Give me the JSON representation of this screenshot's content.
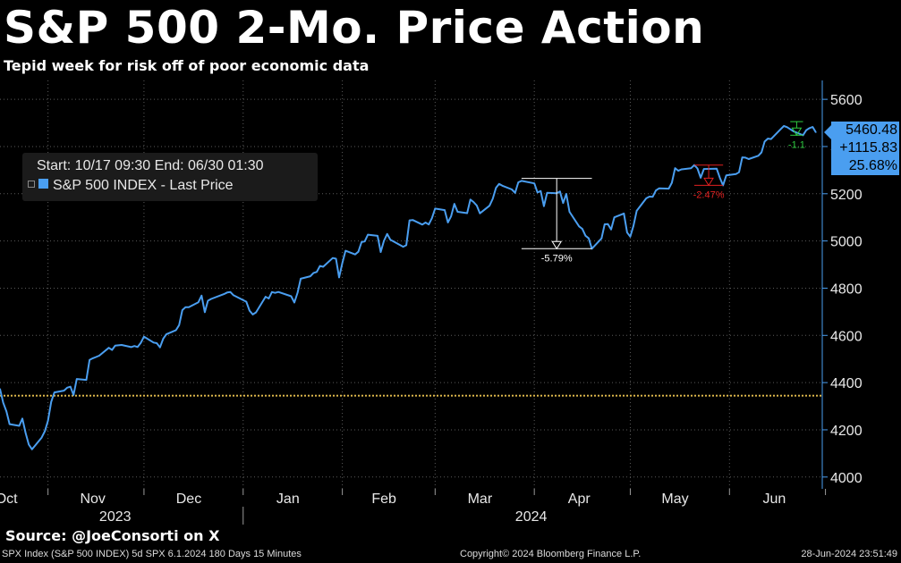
{
  "header": {
    "title": "S&P 500 2-Mo. Price Action",
    "subtitle": "Tepid week for risk off of poor economic data"
  },
  "legend": {
    "range_text": "Start: 10/17 09:30 End: 06/30 01:30",
    "series_label": "S&P 500 INDEX - Last Price"
  },
  "price_boxes": {
    "last": "5460.48",
    "net_change": "+1115.83",
    "pct_change": "25.68%"
  },
  "annotations": {
    "drawdown_1": "-5.79%",
    "drawdown_2": "-2.47%",
    "drawdown_3": "-1.1"
  },
  "footer": {
    "source": "Source: @JoeConsorti on X",
    "left": "SPX Index (S&P 500 INDEX) 5d SPX 6.1.2024 180 Days 15 Minutes",
    "center": "Copyright© 2024 Bloomberg Finance L.P.",
    "right": "28-Jun-2024 23:51:49"
  },
  "colors": {
    "background": "#000000",
    "series": "#4a9ef0",
    "reference_line": "#d9b44a",
    "drawdown_red": "#e02020",
    "drawdown_green": "#2ecc40",
    "drawdown_white": "#ffffff"
  },
  "chart_data": {
    "type": "line",
    "title": "S&P 500 2-Mo. Price Action",
    "subtitle": "Tepid week for risk off of poor economic data",
    "ylim": [
      3950,
      5680
    ],
    "y_ticks": [
      4000,
      4200,
      4400,
      4600,
      4800,
      5000,
      5200,
      5400,
      5600
    ],
    "x_ticks": [
      {
        "label": "Oct",
        "date": "2023-10-19"
      },
      {
        "label": "Nov",
        "date": "2023-11-15"
      },
      {
        "label": "Dec",
        "date": "2023-12-15"
      },
      {
        "label": "Jan",
        "date": "2024-01-15"
      },
      {
        "label": "Feb",
        "date": "2024-02-14"
      },
      {
        "label": "Mar",
        "date": "2024-03-15"
      },
      {
        "label": "Apr",
        "date": "2024-04-15"
      },
      {
        "label": "May",
        "date": "2024-05-15"
      },
      {
        "label": "Jun",
        "date": "2024-06-15"
      }
    ],
    "year_labels": [
      {
        "label": "2023",
        "date": "2023-11-22"
      },
      {
        "label": "2024",
        "date": "2024-03-31"
      }
    ],
    "year_dividers": [
      "2023-10-01",
      "2024-01-01",
      "2024-07-01"
    ],
    "month_boundaries": [
      "2023-11-01",
      "2023-12-01",
      "2024-01-01",
      "2024-02-01",
      "2024-03-01",
      "2024-04-01",
      "2024-05-01",
      "2024-06-01",
      "2024-07-01"
    ],
    "x_start": "2023-10-17",
    "x_end": "2024-06-30",
    "grid": true,
    "y_axis_position": "right",
    "legend_position": "top-left",
    "reference_line": 4344.65,
    "series": [
      {
        "name": "S&P 500 INDEX - Last Price",
        "color": "#4a9ef0",
        "points": [
          [
            "2023-10-17",
            4373.2
          ],
          [
            "2023-10-18",
            4314.6
          ],
          [
            "2023-10-19",
            4278.0
          ],
          [
            "2023-10-20",
            4224.2
          ],
          [
            "2023-10-23",
            4217.0
          ],
          [
            "2023-10-24",
            4247.7
          ],
          [
            "2023-10-25",
            4186.8
          ],
          [
            "2023-10-26",
            4137.2
          ],
          [
            "2023-10-27",
            4117.4
          ],
          [
            "2023-10-30",
            4166.8
          ],
          [
            "2023-10-31",
            4193.8
          ],
          [
            "2023-11-01",
            4237.9
          ],
          [
            "2023-11-02",
            4317.8
          ],
          [
            "2023-11-03",
            4358.3
          ],
          [
            "2023-11-06",
            4365.9
          ],
          [
            "2023-11-07",
            4378.4
          ],
          [
            "2023-11-08",
            4382.8
          ],
          [
            "2023-11-09",
            4347.4
          ],
          [
            "2023-11-10",
            4415.2
          ],
          [
            "2023-11-13",
            4411.6
          ],
          [
            "2023-11-14",
            4495.7
          ],
          [
            "2023-11-15",
            4502.9
          ],
          [
            "2023-11-16",
            4508.2
          ],
          [
            "2023-11-17",
            4514.0
          ],
          [
            "2023-11-20",
            4547.4
          ],
          [
            "2023-11-21",
            4538.2
          ],
          [
            "2023-11-22",
            4556.6
          ],
          [
            "2023-11-24",
            4559.3
          ],
          [
            "2023-11-27",
            4550.4
          ],
          [
            "2023-11-28",
            4554.9
          ],
          [
            "2023-11-29",
            4550.6
          ],
          [
            "2023-11-30",
            4567.8
          ],
          [
            "2023-12-01",
            4594.6
          ],
          [
            "2023-12-04",
            4569.8
          ],
          [
            "2023-12-05",
            4567.2
          ],
          [
            "2023-12-06",
            4549.3
          ],
          [
            "2023-12-07",
            4585.6
          ],
          [
            "2023-12-08",
            4604.4
          ],
          [
            "2023-12-11",
            4622.4
          ],
          [
            "2023-12-12",
            4643.7
          ],
          [
            "2023-12-13",
            4707.1
          ],
          [
            "2023-12-14",
            4719.6
          ],
          [
            "2023-12-15",
            4719.2
          ],
          [
            "2023-12-18",
            4740.6
          ],
          [
            "2023-12-19",
            4768.4
          ],
          [
            "2023-12-20",
            4698.4
          ],
          [
            "2023-12-21",
            4746.8
          ],
          [
            "2023-12-22",
            4754.6
          ],
          [
            "2023-12-26",
            4774.8
          ],
          [
            "2023-12-27",
            4781.6
          ],
          [
            "2023-12-28",
            4783.4
          ],
          [
            "2023-12-29",
            4769.8
          ],
          [
            "2024-01-02",
            4742.8
          ],
          [
            "2024-01-03",
            4704.8
          ],
          [
            "2024-01-04",
            4688.7
          ],
          [
            "2024-01-05",
            4697.2
          ],
          [
            "2024-01-08",
            4763.5
          ],
          [
            "2024-01-09",
            4756.5
          ],
          [
            "2024-01-10",
            4783.5
          ],
          [
            "2024-01-11",
            4780.2
          ],
          [
            "2024-01-12",
            4783.8
          ],
          [
            "2024-01-16",
            4765.9
          ],
          [
            "2024-01-17",
            4739.2
          ],
          [
            "2024-01-18",
            4780.9
          ],
          [
            "2024-01-19",
            4839.8
          ],
          [
            "2024-01-22",
            4850.4
          ],
          [
            "2024-01-23",
            4864.6
          ],
          [
            "2024-01-24",
            4868.6
          ],
          [
            "2024-01-25",
            4894.2
          ],
          [
            "2024-01-26",
            4890.9
          ],
          [
            "2024-01-29",
            4927.9
          ],
          [
            "2024-01-30",
            4924.9
          ],
          [
            "2024-01-31",
            4845.7
          ],
          [
            "2024-02-01",
            4906.2
          ],
          [
            "2024-02-02",
            4958.6
          ],
          [
            "2024-02-05",
            4942.8
          ],
          [
            "2024-02-06",
            4954.2
          ],
          [
            "2024-02-07",
            4995.1
          ],
          [
            "2024-02-08",
            4997.9
          ],
          [
            "2024-02-09",
            5026.6
          ],
          [
            "2024-02-12",
            5021.8
          ],
          [
            "2024-02-13",
            4953.2
          ],
          [
            "2024-02-14",
            5000.6
          ],
          [
            "2024-02-15",
            5029.7
          ],
          [
            "2024-02-16",
            5005.6
          ],
          [
            "2024-02-20",
            4975.5
          ],
          [
            "2024-02-21",
            4981.8
          ],
          [
            "2024-02-22",
            5087.0
          ],
          [
            "2024-02-23",
            5088.8
          ],
          [
            "2024-02-26",
            5069.5
          ],
          [
            "2024-02-27",
            5078.2
          ],
          [
            "2024-02-28",
            5069.8
          ],
          [
            "2024-02-29",
            5096.3
          ],
          [
            "2024-03-01",
            5137.1
          ],
          [
            "2024-03-04",
            5130.9
          ],
          [
            "2024-03-05",
            5078.6
          ],
          [
            "2024-03-06",
            5104.8
          ],
          [
            "2024-03-07",
            5157.4
          ],
          [
            "2024-03-08",
            5123.7
          ],
          [
            "2024-03-11",
            5117.9
          ],
          [
            "2024-03-12",
            5175.3
          ],
          [
            "2024-03-13",
            5165.3
          ],
          [
            "2024-03-14",
            5150.5
          ],
          [
            "2024-03-15",
            5117.1
          ],
          [
            "2024-03-18",
            5149.4
          ],
          [
            "2024-03-19",
            5178.5
          ],
          [
            "2024-03-20",
            5224.6
          ],
          [
            "2024-03-21",
            5241.5
          ],
          [
            "2024-03-22",
            5234.2
          ],
          [
            "2024-03-25",
            5218.2
          ],
          [
            "2024-03-26",
            5203.6
          ],
          [
            "2024-03-27",
            5248.5
          ],
          [
            "2024-03-28",
            5254.4
          ],
          [
            "2024-04-01",
            5243.8
          ],
          [
            "2024-04-02",
            5205.8
          ],
          [
            "2024-04-03",
            5211.5
          ],
          [
            "2024-04-04",
            5147.2
          ],
          [
            "2024-04-05",
            5204.3
          ],
          [
            "2024-04-08",
            5202.4
          ],
          [
            "2024-04-09",
            5209.9
          ],
          [
            "2024-04-10",
            5160.6
          ],
          [
            "2024-04-11",
            5199.1
          ],
          [
            "2024-04-12",
            5123.4
          ],
          [
            "2024-04-15",
            5061.8
          ],
          [
            "2024-04-16",
            5051.4
          ],
          [
            "2024-04-17",
            5022.2
          ],
          [
            "2024-04-18",
            5011.1
          ],
          [
            "2024-04-19",
            4967.2
          ],
          [
            "2024-04-22",
            5010.6
          ],
          [
            "2024-04-23",
            5070.6
          ],
          [
            "2024-04-24",
            5071.6
          ],
          [
            "2024-04-25",
            5048.4
          ],
          [
            "2024-04-26",
            5099.9
          ],
          [
            "2024-04-29",
            5116.2
          ],
          [
            "2024-04-30",
            5035.7
          ],
          [
            "2024-05-01",
            5018.4
          ],
          [
            "2024-05-02",
            5064.2
          ],
          [
            "2024-05-03",
            5127.8
          ],
          [
            "2024-05-06",
            5180.7
          ],
          [
            "2024-05-07",
            5187.7
          ],
          [
            "2024-05-08",
            5187.2
          ],
          [
            "2024-05-09",
            5214.1
          ],
          [
            "2024-05-10",
            5222.7
          ],
          [
            "2024-05-13",
            5221.4
          ],
          [
            "2024-05-14",
            5246.7
          ],
          [
            "2024-05-15",
            5308.2
          ],
          [
            "2024-05-16",
            5297.1
          ],
          [
            "2024-05-17",
            5303.3
          ],
          [
            "2024-05-20",
            5308.1
          ],
          [
            "2024-05-21",
            5321.4
          ],
          [
            "2024-05-22",
            5307.0
          ],
          [
            "2024-05-23",
            5267.8
          ],
          [
            "2024-05-24",
            5304.7
          ],
          [
            "2024-05-28",
            5306.0
          ],
          [
            "2024-05-29",
            5266.9
          ],
          [
            "2024-05-30",
            5235.5
          ],
          [
            "2024-05-31",
            5277.5
          ],
          [
            "2024-06-03",
            5283.4
          ],
          [
            "2024-06-04",
            5291.3
          ],
          [
            "2024-06-05",
            5354.0
          ],
          [
            "2024-06-06",
            5352.9
          ],
          [
            "2024-06-07",
            5346.9
          ],
          [
            "2024-06-10",
            5360.8
          ],
          [
            "2024-06-11",
            5375.3
          ],
          [
            "2024-06-12",
            5421.0
          ],
          [
            "2024-06-13",
            5433.7
          ],
          [
            "2024-06-14",
            5431.6
          ],
          [
            "2024-06-17",
            5473.2
          ],
          [
            "2024-06-18",
            5487.0
          ],
          [
            "2024-06-19",
            5482.0
          ],
          [
            "2024-06-20",
            5473.2
          ],
          [
            "2024-06-21",
            5464.6
          ],
          [
            "2024-06-24",
            5447.9
          ],
          [
            "2024-06-25",
            5469.3
          ],
          [
            "2024-06-26",
            5477.9
          ],
          [
            "2024-06-27",
            5482.9
          ],
          [
            "2024-06-28",
            5460.5
          ]
        ]
      }
    ],
    "drawdowns": [
      {
        "label": "-5.79%",
        "color": "#ffffff",
        "start_date": "2024-03-28",
        "end_date": "2024-04-19",
        "high": 5264.9,
        "low": 4967.2
      },
      {
        "label": "-2.47%",
        "color": "#e02020",
        "start_date": "2024-05-21",
        "end_date": "2024-05-30",
        "high": 5321.4,
        "low": 5235.5
      },
      {
        "label": "-1.1",
        "color": "#2ecc40",
        "start_date": "2024-06-20",
        "end_date": "2024-06-24",
        "high": 5505.5,
        "low": 5447.9
      }
    ],
    "last_value": 5460.48,
    "net_change": 1115.83,
    "pct_change": 25.68
  }
}
